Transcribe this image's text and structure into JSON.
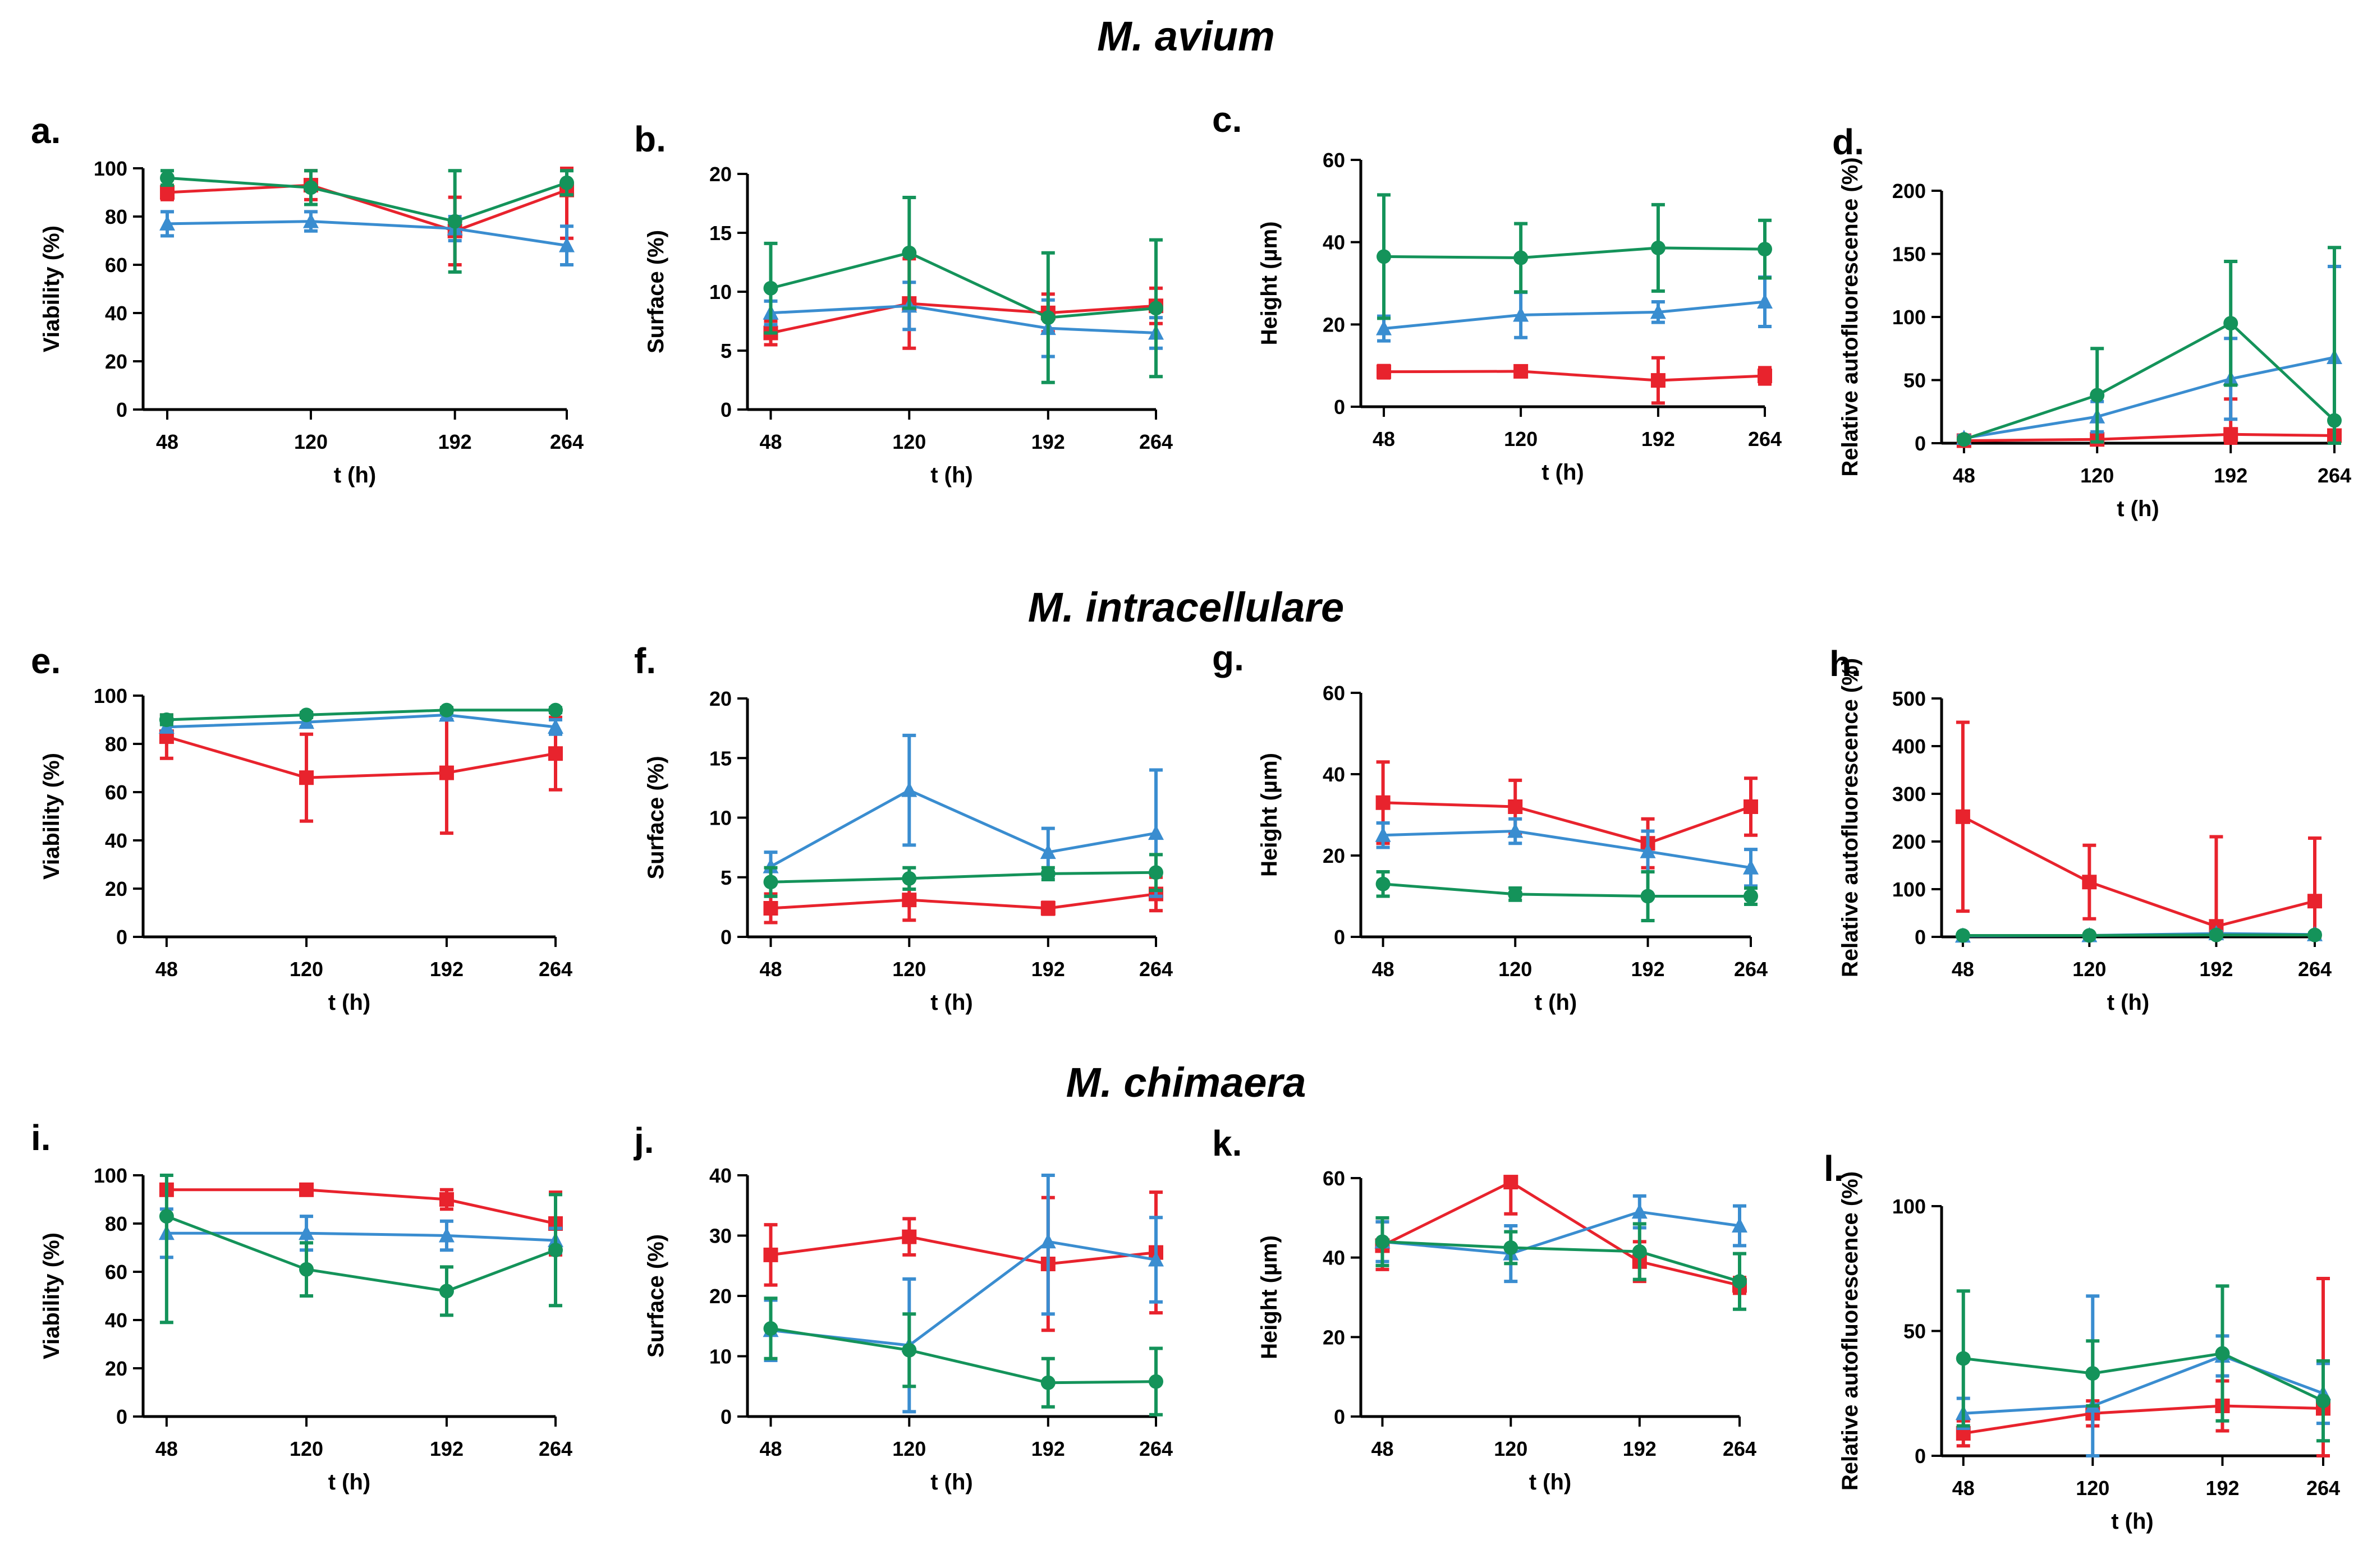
{
  "figure": {
    "row_titles": [
      "M. avium",
      "M. intracellulare",
      "M. chimaera"
    ],
    "series_colors": {
      "red": "#e8232d",
      "blue": "#3a8dd0",
      "green": "#14935a"
    },
    "x_categories": [
      "48",
      "120",
      "192",
      "264"
    ],
    "xlabel": "t (h)"
  },
  "chart_data": [
    {
      "id": "a",
      "type": "line",
      "panel_label": "a.",
      "title": "",
      "xlabel": "t (h)",
      "ylabel": "Viability (%)",
      "categories": [
        "48",
        "120",
        "192",
        "264"
      ],
      "ylim": [
        0,
        100
      ],
      "yticks": [
        0,
        20,
        40,
        60,
        80,
        100
      ],
      "series": [
        {
          "name": "red",
          "color": "#e8232d",
          "marker": "square",
          "values": [
            90,
            93,
            74,
            91
          ],
          "errors": [
            3,
            6,
            14,
            20
          ]
        },
        {
          "name": "blue",
          "color": "#3a8dd0",
          "marker": "triangle",
          "values": [
            77,
            78,
            75,
            68
          ],
          "errors": [
            5,
            4,
            5,
            8
          ]
        },
        {
          "name": "green",
          "color": "#14935a",
          "marker": "circle",
          "values": [
            96,
            92,
            78,
            94
          ],
          "errors": [
            3,
            7,
            21,
            5
          ]
        }
      ]
    },
    {
      "id": "b",
      "type": "line",
      "panel_label": "b.",
      "title": "",
      "xlabel": "t (h)",
      "ylabel": "Surface (%)",
      "categories": [
        "48",
        "120",
        "192",
        "264"
      ],
      "ylim": [
        0,
        20
      ],
      "yticks": [
        0,
        5,
        10,
        15,
        20
      ],
      "series": [
        {
          "name": "red",
          "color": "#e8232d",
          "marker": "square",
          "values": [
            6.5,
            9.0,
            8.2,
            8.8
          ],
          "errors": [
            1.0,
            3.8,
            1.6,
            1.5
          ]
        },
        {
          "name": "blue",
          "color": "#3a8dd0",
          "marker": "triangle",
          "values": [
            8.2,
            8.8,
            6.9,
            6.5
          ],
          "errors": [
            1.0,
            2.0,
            2.4,
            1.3
          ]
        },
        {
          "name": "green",
          "color": "#14935a",
          "marker": "circle",
          "values": [
            10.3,
            13.3,
            7.8,
            8.6
          ],
          "errors": [
            3.8,
            4.7,
            5.5,
            5.8
          ]
        }
      ]
    },
    {
      "id": "c",
      "type": "line",
      "panel_label": "c.",
      "title": "",
      "xlabel": "t (h)",
      "ylabel": "Height (µm)",
      "categories": [
        "48",
        "120",
        "192",
        "264"
      ],
      "ylim": [
        0,
        60
      ],
      "yticks": [
        0,
        20,
        40,
        60
      ],
      "series": [
        {
          "name": "red",
          "color": "#e8232d",
          "marker": "square",
          "values": [
            8.5,
            8.6,
            6.4,
            7.5
          ],
          "errors": [
            1.5,
            1.0,
            5.5,
            2.0
          ]
        },
        {
          "name": "blue",
          "color": "#3a8dd0",
          "marker": "triangle",
          "values": [
            19.0,
            22.3,
            23.0,
            25.5
          ],
          "errors": [
            3.0,
            5.5,
            2.5,
            6.0
          ]
        },
        {
          "name": "green",
          "color": "#14935a",
          "marker": "circle",
          "values": [
            36.5,
            36.2,
            38.6,
            38.3
          ],
          "errors": [
            15.0,
            8.3,
            10.5,
            7.0
          ]
        }
      ]
    },
    {
      "id": "d",
      "type": "line",
      "panel_label": "d.",
      "title": "",
      "xlabel": "t (h)",
      "ylabel": "Relative autofluorescence (%)",
      "categories": [
        "48",
        "120",
        "192",
        "264"
      ],
      "ylim": [
        0,
        200
      ],
      "yticks": [
        0,
        50,
        100,
        150,
        200
      ],
      "series": [
        {
          "name": "red",
          "color": "#e8232d",
          "marker": "square",
          "values": [
            2,
            3,
            7,
            6
          ],
          "errors": [
            1,
            2,
            28,
            2
          ]
        },
        {
          "name": "blue",
          "color": "#3a8dd0",
          "marker": "triangle",
          "values": [
            4,
            21,
            51,
            68
          ],
          "errors": [
            2,
            12,
            32,
            72
          ]
        },
        {
          "name": "green",
          "color": "#14935a",
          "marker": "circle",
          "values": [
            3,
            38,
            95,
            18
          ],
          "errors": [
            1,
            37,
            49,
            137
          ]
        }
      ]
    },
    {
      "id": "e",
      "type": "line",
      "panel_label": "e.",
      "title": "",
      "xlabel": "t (h)",
      "ylabel": "Viability (%)",
      "categories": [
        "48",
        "120",
        "192",
        "264"
      ],
      "ylim": [
        0,
        100
      ],
      "yticks": [
        0,
        20,
        40,
        60,
        80,
        100
      ],
      "series": [
        {
          "name": "red",
          "color": "#e8232d",
          "marker": "square",
          "values": [
            83,
            66,
            68,
            76
          ],
          "errors": [
            9,
            18,
            25,
            15
          ]
        },
        {
          "name": "blue",
          "color": "#3a8dd0",
          "marker": "triangle",
          "values": [
            87,
            89,
            92,
            87
          ],
          "errors": [
            2,
            2,
            2,
            3
          ]
        },
        {
          "name": "green",
          "color": "#14935a",
          "marker": "circle",
          "values": [
            90,
            92,
            94,
            94
          ],
          "errors": [
            2,
            1,
            1,
            1
          ]
        }
      ]
    },
    {
      "id": "f",
      "type": "line",
      "panel_label": "f.",
      "title": "",
      "xlabel": "t (h)",
      "ylabel": "Surface (%)",
      "categories": [
        "48",
        "120",
        "192",
        "264"
      ],
      "ylim": [
        0,
        20
      ],
      "yticks": [
        0,
        5,
        10,
        15,
        20
      ],
      "series": [
        {
          "name": "red",
          "color": "#e8232d",
          "marker": "square",
          "values": [
            2.4,
            3.1,
            2.4,
            3.6
          ],
          "errors": [
            1.2,
            1.7,
            0.5,
            1.4
          ]
        },
        {
          "name": "blue",
          "color": "#3a8dd0",
          "marker": "triangle",
          "values": [
            5.9,
            12.3,
            7.1,
            8.7
          ],
          "errors": [
            1.2,
            4.6,
            2.0,
            5.3
          ]
        },
        {
          "name": "green",
          "color": "#14935a",
          "marker": "circle",
          "values": [
            4.6,
            4.9,
            5.3,
            5.4
          ],
          "errors": [
            1.2,
            0.9,
            0.5,
            1.5
          ]
        }
      ]
    },
    {
      "id": "g",
      "type": "line",
      "panel_label": "g.",
      "title": "",
      "xlabel": "t (h)",
      "ylabel": "Height (µm)",
      "categories": [
        "48",
        "120",
        "192",
        "264"
      ],
      "ylim": [
        0,
        60
      ],
      "yticks": [
        0,
        20,
        40,
        60
      ],
      "series": [
        {
          "name": "red",
          "color": "#e8232d",
          "marker": "square",
          "values": [
            33,
            32,
            23,
            32
          ],
          "errors": [
            10,
            6.5,
            6,
            7
          ]
        },
        {
          "name": "blue",
          "color": "#3a8dd0",
          "marker": "triangle",
          "values": [
            25,
            26,
            21,
            17
          ],
          "errors": [
            3,
            3,
            5,
            4.5
          ]
        },
        {
          "name": "green",
          "color": "#14935a",
          "marker": "circle",
          "values": [
            13,
            10.5,
            10,
            10
          ],
          "errors": [
            3,
            1.5,
            6,
            2
          ]
        }
      ]
    },
    {
      "id": "h",
      "type": "line",
      "panel_label": "h.",
      "title": "",
      "xlabel": "t (h)",
      "ylabel": "Relative autofluorescence (%)",
      "categories": [
        "48",
        "120",
        "192",
        "264"
      ],
      "ylim": [
        0,
        500
      ],
      "yticks": [
        0,
        100,
        200,
        300,
        400,
        500
      ],
      "series": [
        {
          "name": "red",
          "color": "#e8232d",
          "marker": "square",
          "values": [
            252,
            115,
            22,
            75
          ],
          "errors": [
            198,
            77,
            188,
            132
          ]
        },
        {
          "name": "blue",
          "color": "#3a8dd0",
          "marker": "triangle",
          "values": [
            2,
            3,
            7,
            5
          ],
          "errors": [
            2,
            2,
            4,
            3
          ]
        },
        {
          "name": "green",
          "color": "#14935a",
          "marker": "circle",
          "values": [
            3,
            3,
            4,
            4
          ],
          "errors": [
            2,
            2,
            2,
            2
          ]
        }
      ]
    },
    {
      "id": "i",
      "type": "line",
      "panel_label": "i.",
      "title": "",
      "xlabel": "t (h)",
      "ylabel": "Viability (%)",
      "categories": [
        "48",
        "120",
        "192",
        "264"
      ],
      "ylim": [
        0,
        100
      ],
      "yticks": [
        0,
        20,
        40,
        60,
        80,
        100
      ],
      "series": [
        {
          "name": "red",
          "color": "#e8232d",
          "marker": "square",
          "values": [
            94,
            94,
            90,
            80
          ],
          "errors": [
            1,
            1,
            4,
            13
          ]
        },
        {
          "name": "blue",
          "color": "#3a8dd0",
          "marker": "triangle",
          "values": [
            76,
            76,
            75,
            73
          ],
          "errors": [
            10,
            7,
            6,
            5
          ]
        },
        {
          "name": "green",
          "color": "#14935a",
          "marker": "circle",
          "values": [
            83,
            61,
            52,
            69
          ],
          "errors": [
            44,
            11,
            10,
            23
          ]
        }
      ]
    },
    {
      "id": "j",
      "type": "line",
      "panel_label": "j.",
      "title": "",
      "xlabel": "t (h)",
      "ylabel": "Surface (%)",
      "categories": [
        "48",
        "120",
        "192",
        "264"
      ],
      "ylim": [
        0,
        40
      ],
      "yticks": [
        0,
        10,
        20,
        30,
        40
      ],
      "series": [
        {
          "name": "red",
          "color": "#e8232d",
          "marker": "square",
          "values": [
            26.8,
            29.8,
            25.3,
            27.2
          ],
          "errors": [
            5.0,
            3.0,
            11.0,
            10.0
          ]
        },
        {
          "name": "blue",
          "color": "#3a8dd0",
          "marker": "triangle",
          "values": [
            14.3,
            11.8,
            29.0,
            26.0
          ],
          "errors": [
            5.0,
            11.0,
            12.0,
            7.0
          ]
        },
        {
          "name": "green",
          "color": "#14935a",
          "marker": "circle",
          "values": [
            14.6,
            11.0,
            5.6,
            5.8
          ],
          "errors": [
            5.0,
            6.0,
            4.0,
            5.5
          ]
        }
      ]
    },
    {
      "id": "k",
      "type": "line",
      "panel_label": "k.",
      "title": "",
      "xlabel": "t (h)",
      "ylabel": "Height (µm)",
      "categories": [
        "48",
        "120",
        "192",
        "264"
      ],
      "ylim": [
        0,
        60
      ],
      "yticks": [
        0,
        20,
        40,
        60
      ],
      "series": [
        {
          "name": "red",
          "color": "#e8232d",
          "marker": "square",
          "values": [
            43,
            59,
            39,
            33
          ],
          "errors": [
            6,
            8,
            5,
            2
          ]
        },
        {
          "name": "blue",
          "color": "#3a8dd0",
          "marker": "triangle",
          "values": [
            44,
            41,
            51.5,
            48
          ],
          "errors": [
            5,
            7,
            4,
            5
          ]
        },
        {
          "name": "green",
          "color": "#14935a",
          "marker": "circle",
          "values": [
            44,
            42.5,
            41.5,
            34
          ],
          "errors": [
            6,
            4,
            7,
            7
          ]
        }
      ]
    },
    {
      "id": "l",
      "type": "line",
      "panel_label": "l.",
      "title": "",
      "xlabel": "t (h)",
      "ylabel": "Relative autofluorescence (%)",
      "categories": [
        "48",
        "120",
        "192",
        "264"
      ],
      "ylim": [
        0,
        100
      ],
      "yticks": [
        0,
        50,
        100
      ],
      "series": [
        {
          "name": "red",
          "color": "#e8232d",
          "marker": "square",
          "values": [
            9,
            17,
            20,
            19
          ],
          "errors": [
            5,
            5,
            10,
            52
          ]
        },
        {
          "name": "blue",
          "color": "#3a8dd0",
          "marker": "triangle",
          "values": [
            17,
            20,
            40,
            25
          ],
          "errors": [
            6,
            44,
            8,
            12
          ]
        },
        {
          "name": "green",
          "color": "#14935a",
          "marker": "circle",
          "values": [
            39,
            33,
            41,
            22
          ],
          "errors": [
            27,
            13,
            27,
            16
          ]
        }
      ]
    }
  ]
}
